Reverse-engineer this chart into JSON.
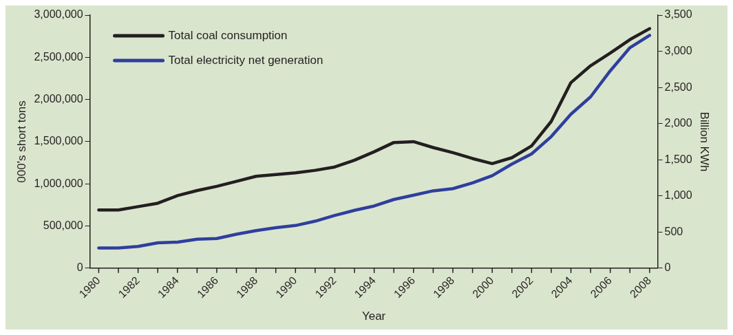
{
  "chart_data": {
    "type": "line",
    "xlabel": "Year",
    "ylabel": "000's short tons",
    "y2label": "Billion KWh",
    "x": [
      1980,
      1981,
      1982,
      1983,
      1984,
      1985,
      1986,
      1987,
      1988,
      1989,
      1990,
      1991,
      1992,
      1993,
      1994,
      1995,
      1996,
      1997,
      1998,
      1999,
      2000,
      2001,
      2002,
      2003,
      2004,
      2005,
      2006,
      2007,
      2008
    ],
    "series": [
      {
        "name": "Total coal consumption",
        "color": "#231f20",
        "values": [
          690000,
          690000,
          730000,
          770000,
          860000,
          920000,
          970000,
          1030000,
          1090000,
          1110000,
          1130000,
          1160000,
          1200000,
          1280000,
          1380000,
          1490000,
          1500000,
          1430000,
          1370000,
          1300000,
          1240000,
          1310000,
          1450000,
          1740000,
          2200000,
          2400000,
          2550000,
          2710000,
          2840000
        ]
      },
      {
        "name": "Total electricity net generation",
        "color": "#2e3f9e",
        "axis": "y2",
        "values": [
          280,
          280,
          300,
          350,
          360,
          400,
          410,
          470,
          520,
          560,
          590,
          650,
          730,
          800,
          860,
          950,
          1010,
          1070,
          1100,
          1180,
          1280,
          1440,
          1580,
          1820,
          2130,
          2370,
          2730,
          3050,
          3220
        ]
      }
    ],
    "xlim": [
      1979.55,
      2008.41
    ],
    "xticks": [
      1980,
      {
        "value": 1981,
        "label": null
      },
      1982,
      {
        "value": 1983,
        "label": null
      },
      1984,
      {
        "value": 1985,
        "label": null
      },
      1986,
      {
        "value": 1987,
        "label": null
      },
      1988,
      {
        "value": 1989,
        "label": null
      },
      1990,
      {
        "value": 1991,
        "label": null
      },
      1992,
      {
        "value": 1993,
        "label": null
      },
      1994,
      {
        "value": 1995,
        "label": null
      },
      1996,
      {
        "value": 1997,
        "label": null
      },
      1998,
      {
        "value": 1999,
        "label": null
      },
      2000,
      {
        "value": 2001,
        "label": null
      },
      2002,
      {
        "value": 2003,
        "label": null
      },
      2004,
      {
        "value": 2005,
        "label": null
      },
      2006,
      {
        "value": 2007,
        "label": null
      },
      2008
    ],
    "ylim": [
      0,
      3000000
    ],
    "yticks": [
      0,
      {
        "value": 500000,
        "label": "500,000"
      },
      {
        "value": 1000000,
        "label": "1,000,000"
      },
      {
        "value": 1500000,
        "label": "1,500,000"
      },
      {
        "value": 2000000,
        "label": "2,000,000"
      },
      {
        "value": 2500000,
        "label": "2,500,000"
      },
      {
        "value": 3000000,
        "label": "3,000,000"
      }
    ],
    "y2lim": [
      0,
      3500
    ],
    "y2ticks": [
      0,
      500,
      {
        "value": 1000,
        "label": "1,000"
      },
      {
        "value": 1500,
        "label": "1,500"
      },
      {
        "value": 2000,
        "label": "2,000"
      },
      {
        "value": 2500,
        "label": "2,500"
      },
      {
        "value": 3000,
        "label": "3,000"
      },
      {
        "value": 3500,
        "label": "3,500"
      }
    ],
    "grid": false,
    "legend": "top left",
    "marker": "none",
    "line_style": "solid"
  }
}
